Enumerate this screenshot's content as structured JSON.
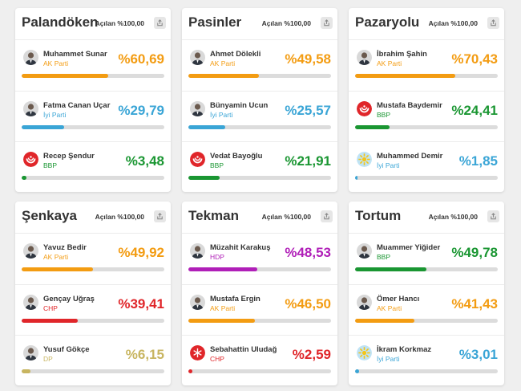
{
  "colors": {
    "ak": "#f39c12",
    "iyi": "#3aa5d6",
    "bbp": "#1a9632",
    "chp": "#e0262a",
    "hdp": "#b01fb8",
    "dp": "#c8b560"
  },
  "icons": {
    "share": "share-icon",
    "avatar": "person-avatar-icon",
    "bbp_logo": "bbp-logo-icon",
    "iyi_logo": "iyi-logo-icon",
    "chp_logo": "chp-logo-icon"
  },
  "districts": [
    {
      "title": "Palandöken",
      "opened": "Açılan %100,00",
      "candidates": [
        {
          "name": "Muhammet Sunar",
          "party": "AK Parti",
          "pct": "%60,69",
          "value": 60.69,
          "color": "ak",
          "avatar": "photo"
        },
        {
          "name": "Fatma Canan Uçar",
          "party": "İyi Parti",
          "pct": "%29,79",
          "value": 29.79,
          "color": "iyi",
          "avatar": "photo"
        },
        {
          "name": "Recep Şendur",
          "party": "BBP",
          "pct": "%3,48",
          "value": 3.48,
          "color": "bbp",
          "avatar": "bbp"
        }
      ]
    },
    {
      "title": "Pasinler",
      "opened": "Açılan %100,00",
      "candidates": [
        {
          "name": "Ahmet Dölekli",
          "party": "AK Parti",
          "pct": "%49,58",
          "value": 49.58,
          "color": "ak",
          "avatar": "photo"
        },
        {
          "name": "Bünyamin Ucun",
          "party": "İyi Parti",
          "pct": "%25,57",
          "value": 25.57,
          "color": "iyi",
          "avatar": "photo"
        },
        {
          "name": "Vedat Bayoğlu",
          "party": "BBP",
          "pct": "%21,91",
          "value": 21.91,
          "color": "bbp",
          "avatar": "bbp"
        }
      ]
    },
    {
      "title": "Pazaryolu",
      "opened": "Açılan %100,00",
      "candidates": [
        {
          "name": "İbrahim Şahin",
          "party": "AK Parti",
          "pct": "%70,43",
          "value": 70.43,
          "color": "ak",
          "avatar": "photo"
        },
        {
          "name": "Mustafa Baydemir",
          "party": "BBP",
          "pct": "%24,41",
          "value": 24.41,
          "color": "bbp",
          "avatar": "bbp"
        },
        {
          "name": "Muhammed Demir",
          "party": "İyi Parti",
          "pct": "%1,85",
          "value": 1.85,
          "color": "iyi",
          "avatar": "iyi"
        }
      ]
    },
    {
      "title": "Şenkaya",
      "opened": "Açılan %100,00",
      "candidates": [
        {
          "name": "Yavuz Bedir",
          "party": "AK Parti",
          "pct": "%49,92",
          "value": 49.92,
          "color": "ak",
          "avatar": "photo"
        },
        {
          "name": "Gençay Uğraş",
          "party": "CHP",
          "pct": "%39,41",
          "value": 39.41,
          "color": "chp",
          "avatar": "photo"
        },
        {
          "name": "Yusuf Gökçe",
          "party": "DP",
          "pct": "%6,15",
          "value": 6.15,
          "color": "dp",
          "avatar": "photo"
        }
      ]
    },
    {
      "title": "Tekman",
      "opened": "Açılan %100,00",
      "candidates": [
        {
          "name": "Müzahit Karakuş",
          "party": "HDP",
          "pct": "%48,53",
          "value": 48.53,
          "color": "hdp",
          "avatar": "photo"
        },
        {
          "name": "Mustafa Ergin",
          "party": "AK Parti",
          "pct": "%46,50",
          "value": 46.5,
          "color": "ak",
          "avatar": "photo"
        },
        {
          "name": "Sebahattin Uludağ",
          "party": "CHP",
          "pct": "%2,59",
          "value": 2.59,
          "color": "chp",
          "avatar": "chp"
        }
      ]
    },
    {
      "title": "Tortum",
      "opened": "Açılan %100,00",
      "candidates": [
        {
          "name": "Muammer Yiğider",
          "party": "BBP",
          "pct": "%49,78",
          "value": 49.78,
          "color": "bbp",
          "avatar": "photo"
        },
        {
          "name": "Ömer Hancı",
          "party": "AK Parti",
          "pct": "%41,43",
          "value": 41.43,
          "color": "ak",
          "avatar": "photo"
        },
        {
          "name": "İkram Korkmaz",
          "party": "İyi Parti",
          "pct": "%3,01",
          "value": 3.01,
          "color": "iyi",
          "avatar": "iyi"
        }
      ]
    }
  ]
}
